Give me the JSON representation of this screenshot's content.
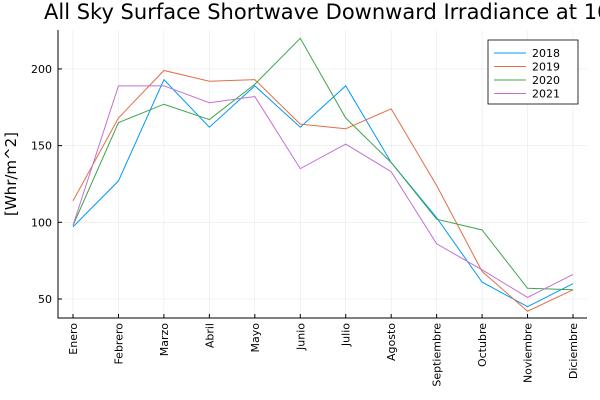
{
  "chart_data": {
    "type": "line",
    "title": "All Sky Surface Shortwave Downward Irradiance at 16",
    "ylabel": "[Whr/m^2]",
    "categories": [
      "Enero",
      "Febrero",
      "Marzo",
      "Abril",
      "Mayo",
      "Junio",
      "Julio",
      "Agosto",
      "Septiembre",
      "Octubre",
      "Noviembre",
      "Diciembre"
    ],
    "series": [
      {
        "name": "2018",
        "color": "#009af9",
        "values": [
          97,
          127,
          193,
          162,
          189,
          162,
          189,
          139,
          103,
          61,
          45,
          60
        ]
      },
      {
        "name": "2019",
        "color": "#e26f46",
        "values": [
          114,
          168,
          199,
          192,
          193,
          164,
          161,
          174,
          124,
          68,
          42,
          56
        ]
      },
      {
        "name": "2020",
        "color": "#3ea44e",
        "values": [
          98,
          165,
          177,
          167,
          190,
          220,
          168,
          139,
          102,
          95,
          57,
          56
        ]
      },
      {
        "name": "2021",
        "color": "#c271d2",
        "values": [
          98,
          189,
          189,
          178,
          182,
          135,
          151,
          133,
          86,
          69,
          51,
          66
        ]
      }
    ],
    "ylim": [
      37.6,
      225.4
    ],
    "yticks": [
      50,
      100,
      150,
      200
    ],
    "grid": true,
    "legend": "top-right"
  }
}
